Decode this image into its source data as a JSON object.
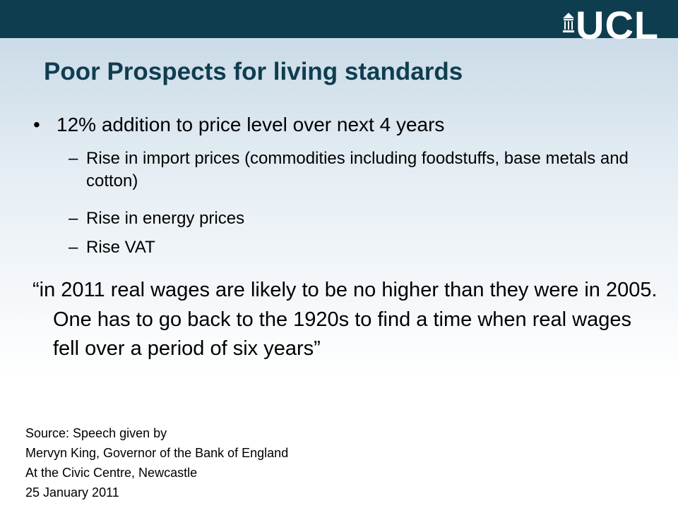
{
  "header": {
    "logo_text": "UCL",
    "bar_color": "#0f3d50"
  },
  "slide": {
    "title": "Poor Prospects for living standards",
    "bullet": "12% addition to price level over next 4 years",
    "sub_items": [
      "Rise in import prices (commodities including foodstuffs, base metals and cotton)",
      "Rise in energy prices",
      "Rise VAT"
    ],
    "dash": "–",
    "bullet_glyph": "•",
    "quote": "“in 2011 real wages are likely to be no higher than they were in 2005. One has to go back to the 1920s to find a time when real wages fell over a period of six years”",
    "source_lines": [
      "Source: Speech given by",
      "Mervyn King, Governor of the Bank of England",
      "At the Civic Centre, Newcastle",
      "25 January 2011"
    ]
  }
}
